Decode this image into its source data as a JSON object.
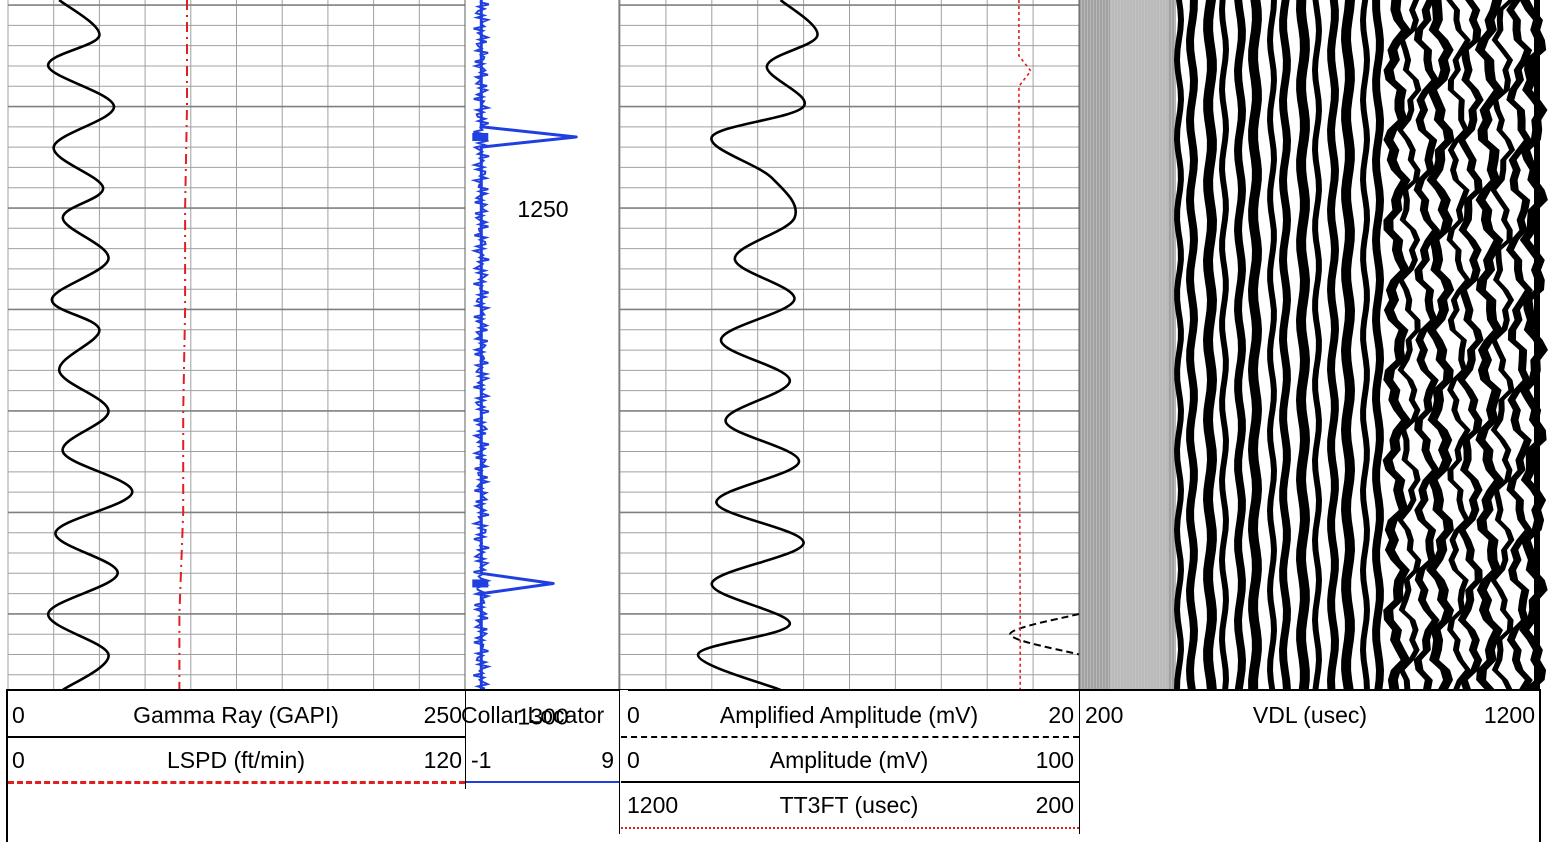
{
  "colors": {
    "grid": "#a0a0a0",
    "gamma": "#000000",
    "lspd": "#e02020",
    "ccl": "#1f3fe0",
    "amplified": "#000000",
    "amplitude": "#000000",
    "tt3ft": "#e02020"
  },
  "chart_data": [
    {
      "type": "line",
      "track": "track-1",
      "series": [
        {
          "name": "Gamma Ray (GAPI)",
          "range": [
            0,
            250
          ],
          "line": "solid",
          "depth": [
            1229.5,
            1233,
            1236,
            1240,
            1244,
            1248,
            1251,
            1255,
            1259,
            1262,
            1266,
            1270,
            1274,
            1278,
            1282,
            1286,
            1290,
            1294,
            1297.5
          ],
          "values": [
            28,
            50,
            22,
            58,
            25,
            52,
            30,
            55,
            24,
            50,
            28,
            55,
            30,
            68,
            26,
            60,
            22,
            55,
            30
          ]
        },
        {
          "name": "LSPD (ft/min)",
          "range": [
            0,
            120
          ],
          "line": "dashed",
          "depth": [
            1229.5,
            1240,
            1250,
            1260,
            1270,
            1280,
            1290,
            1297.5
          ],
          "values": [
            47,
            47,
            46.5,
            46.5,
            46,
            46,
            45,
            45
          ]
        }
      ]
    },
    {
      "type": "line",
      "track": "track-2",
      "series": [
        {
          "name": "Collar Locator",
          "range": [
            -1,
            9
          ],
          "line": "solid",
          "depth": [
            1229.5,
            1242,
            1243,
            1244,
            1286,
            1287,
            1288,
            1297.5
          ],
          "values": [
            0,
            0,
            6.2,
            0,
            0,
            4.7,
            0,
            0
          ],
          "collar_depths": [
            1243,
            1287
          ]
        }
      ],
      "depth_labels": [
        "1250",
        "1300"
      ]
    },
    {
      "type": "line",
      "track": "track-3",
      "series": [
        {
          "name": "Amplified Amplitude (mV)",
          "range": [
            0,
            20
          ],
          "line": "dashed",
          "depth": [
            1290,
            1292,
            1294
          ],
          "values": [
            20,
            17,
            20
          ]
        },
        {
          "name": "Amplitude (mV)",
          "range": [
            0,
            100
          ],
          "line": "solid",
          "depth": [
            1229.5,
            1233,
            1236,
            1240,
            1243,
            1247,
            1251,
            1255,
            1259,
            1263,
            1267,
            1271,
            1275,
            1279,
            1283,
            1287,
            1291,
            1294,
            1297.5
          ],
          "values": [
            35,
            43,
            32,
            40,
            20,
            33,
            38,
            25,
            38,
            22,
            37,
            23,
            39,
            21,
            40,
            20,
            37,
            17,
            35
          ]
        },
        {
          "name": "TT3FT (usec)",
          "range": [
            1200,
            200
          ],
          "line": "dotted",
          "depth": [
            1229.5,
            1235,
            1236.5,
            1238,
            1250,
            1270,
            1290,
            1297.5
          ],
          "values": [
            331,
            331,
            305,
            331,
            330,
            330,
            328,
            328
          ]
        }
      ]
    },
    {
      "type": "heatmap",
      "track": "track-4",
      "name": "VDL (usec)",
      "range": [
        200,
        1200
      ]
    }
  ],
  "headers": {
    "track1": {
      "gr": {
        "min": "0",
        "name": "Gamma Ray (GAPI)",
        "max": "250"
      },
      "lspd": {
        "min": "0",
        "name": "LSPD (ft/min)",
        "max": "120"
      }
    },
    "track2": {
      "ccl": {
        "name": "Collar Locator",
        "min": "-1",
        "max": "9"
      }
    },
    "track3": {
      "amp_amplified": {
        "min": "0",
        "name": "Amplified Amplitude (mV)",
        "max": "20"
      },
      "amp": {
        "min": "0",
        "name": "Amplitude (mV)",
        "max": "100"
      },
      "tt": {
        "min": "1200",
        "name": "TT3FT (usec)",
        "max": "200"
      }
    },
    "track4": {
      "vdl": {
        "min": "200",
        "name": "VDL (usec)",
        "max": "1200"
      }
    }
  }
}
